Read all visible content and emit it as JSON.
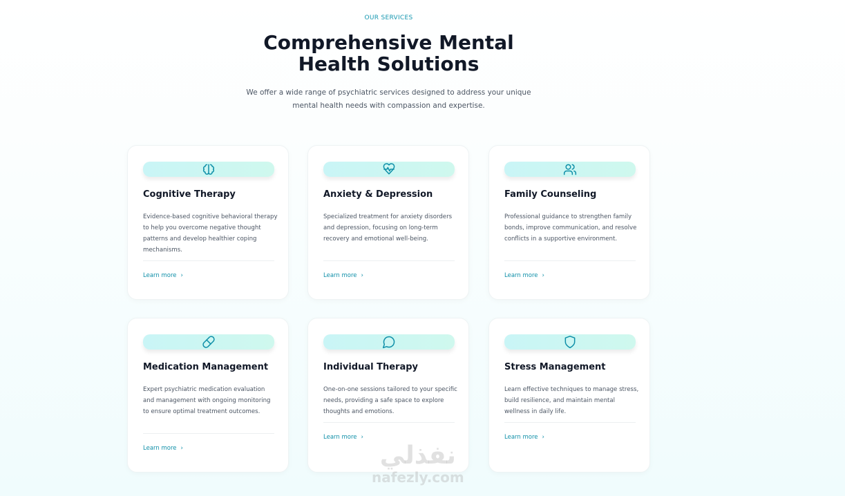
{
  "header": {
    "eyebrow": "OUR SERVICES",
    "title": "Comprehensive Mental Health Solutions",
    "subtitle": "We offer a wide range of psychiatric services designed to address your unique mental health needs with compassion and expertise."
  },
  "accent": "#0e8fa8",
  "services": [
    {
      "icon": "brain-icon",
      "title": "Cognitive Therapy",
      "description": "Evidence-based cognitive behavioral therapy to help you overcome negative thought patterns and develop healthier coping mechanisms.",
      "link": "Learn more"
    },
    {
      "icon": "heart-pulse-icon",
      "title": "Anxiety & Depression",
      "description": "Specialized treatment for anxiety disorders and depression, focusing on long-term recovery and emotional well-being.",
      "link": "Learn more"
    },
    {
      "icon": "users-icon",
      "title": "Family Counseling",
      "description": "Professional guidance to strengthen family bonds, improve communication, and resolve conflicts in a supportive environment.",
      "link": "Learn more"
    },
    {
      "icon": "pill-icon",
      "title": "Medication Management",
      "description": "Expert psychiatric medication evaluation and management with ongoing monitoring to ensure optimal treatment outcomes.",
      "link": "Learn more"
    },
    {
      "icon": "message-circle-icon",
      "title": "Individual Therapy",
      "description": "One-on-one sessions tailored to your specific needs, providing a safe space to explore thoughts and emotions.",
      "link": "Learn more"
    },
    {
      "icon": "shield-icon",
      "title": "Stress Management",
      "description": "Learn effective techniques to manage stress, build resilience, and maintain mental wellness in daily life.",
      "link": "Learn more"
    }
  ],
  "watermark": {
    "arabic": "نفذلي",
    "latin": "nafezly.com"
  }
}
